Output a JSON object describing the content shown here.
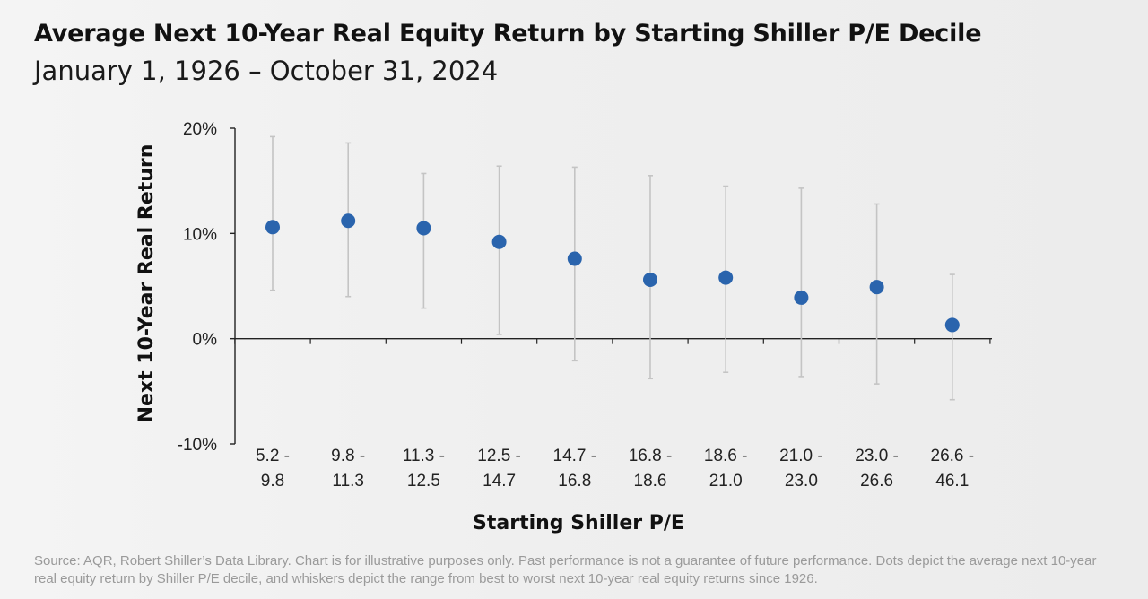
{
  "chart_data": {
    "type": "scatter",
    "title": "Average Next 10-Year Real Equity Return by Starting Shiller P/E Decile",
    "subtitle": "January 1, 1926 – October 31, 2024",
    "xlabel": "Starting Shiller P/E",
    "ylabel": "Next 10-Year Real Return",
    "ylim": [
      -10,
      20
    ],
    "y_ticks": [
      "-10%",
      "0%",
      "10%",
      "20%"
    ],
    "categories": [
      [
        "5.2 -",
        "9.8"
      ],
      [
        "9.8 -",
        "11.3"
      ],
      [
        "11.3 -",
        "12.5"
      ],
      [
        "12.5 -",
        "14.7"
      ],
      [
        "14.7 -",
        "16.8"
      ],
      [
        "16.8 -",
        "18.6"
      ],
      [
        "18.6 -",
        "21.0"
      ],
      [
        "21.0 -",
        "23.0"
      ],
      [
        "23.0 -",
        "26.6"
      ],
      [
        "26.6 -",
        "46.1"
      ]
    ],
    "series": [
      {
        "values": [
          10.6,
          11.2,
          10.5,
          9.2,
          7.6,
          5.6,
          5.8,
          3.9,
          4.9,
          1.3
        ],
        "max": [
          19.2,
          18.6,
          15.7,
          16.4,
          16.3,
          15.5,
          14.5,
          14.3,
          12.8,
          6.1
        ],
        "min": [
          4.6,
          4.0,
          2.9,
          0.4,
          -2.1,
          -3.8,
          -3.2,
          -3.6,
          -4.3,
          -5.8
        ]
      }
    ],
    "grid": false,
    "legend": "none",
    "colors": {
      "dot": "#2a64ad",
      "whisker": "#c4c4c4",
      "axis": "#222222"
    }
  },
  "footnote": "Source: AQR, Robert Shiller’s Data Library. Chart is for illustrative purposes only. Past performance is not a guarantee of future performance. Dots depict the average next 10-year real equity return by Shiller P/E decile, and whiskers depict the range from best to worst next 10-year real equity returns since 1926."
}
